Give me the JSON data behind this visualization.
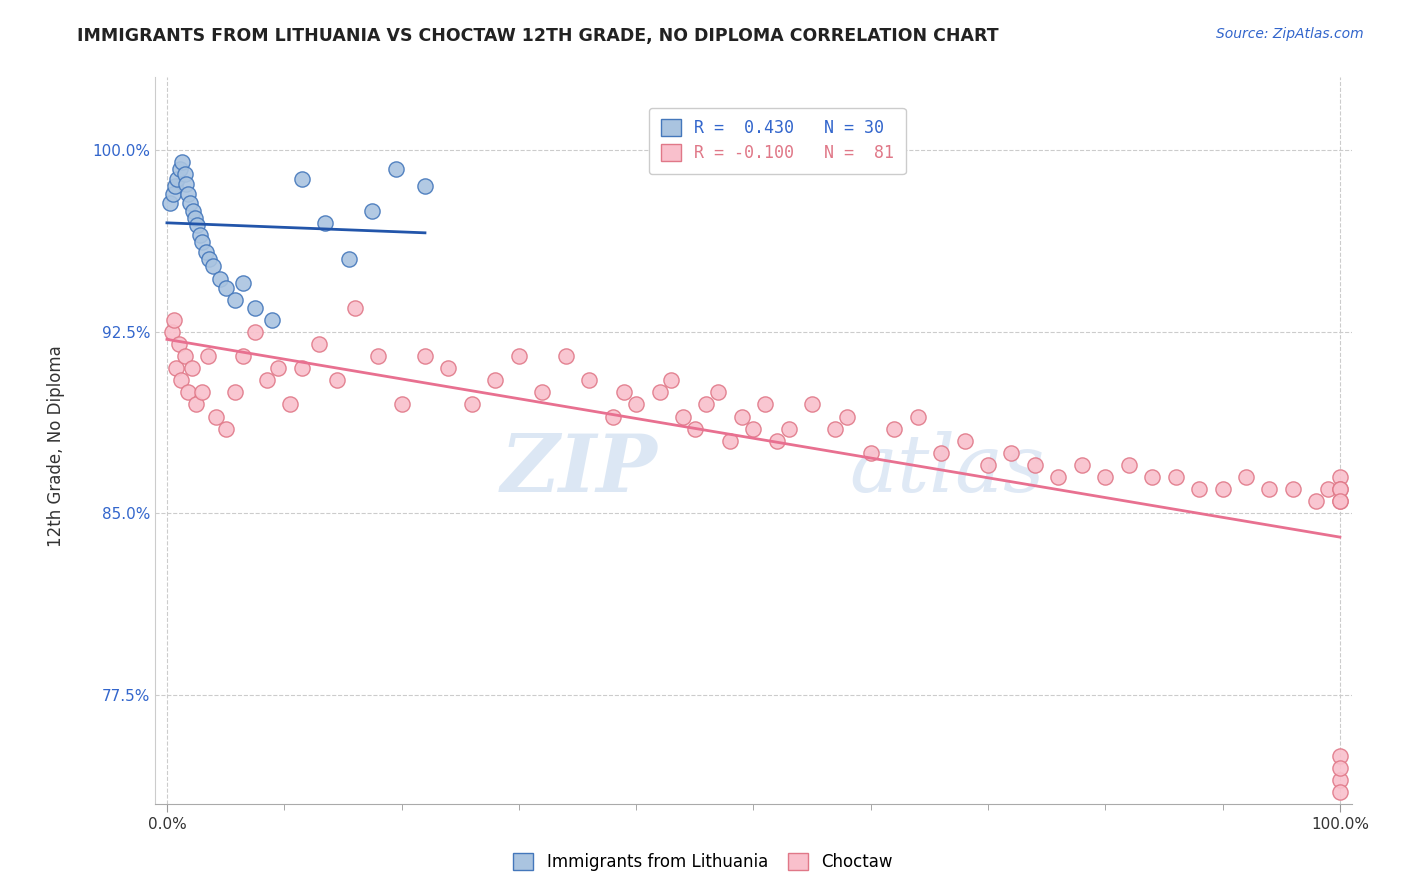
{
  "title": "IMMIGRANTS FROM LITHUANIA VS CHOCTAW 12TH GRADE, NO DIPLOMA CORRELATION CHART",
  "source": "Source: ZipAtlas.com",
  "ylabel": "12th Grade, No Diploma",
  "watermark_zip": "ZIP",
  "watermark_atlas": "atlas",
  "blue_color": "#aac4e0",
  "blue_edge_color": "#4477bb",
  "pink_color": "#f9c0cc",
  "pink_edge_color": "#e07888",
  "blue_line_color": "#2255aa",
  "pink_line_color": "#e87090",
  "xlim": [
    -1,
    101
  ],
  "ylim": [
    73.0,
    103.0
  ],
  "yticks": [
    77.5,
    85.0,
    92.5,
    100.0
  ],
  "ytick_labels": [
    "77.5%",
    "85.0%",
    "92.5%",
    "100.0%"
  ],
  "xtick_left_label": "0.0%",
  "xtick_right_label": "100.0%",
  "legend_r1_blue": "R = ",
  "legend_r1_val": " 0.430",
  "legend_r1_n": "  N = ",
  "legend_r1_nval": "30",
  "legend_r2_pink": "R = ",
  "legend_r2_val": "-0.100",
  "legend_r2_n": "  N = ",
  "legend_r2_nval": " 81",
  "blue_x": [
    0.3,
    0.5,
    0.7,
    0.9,
    1.1,
    1.3,
    1.5,
    1.6,
    1.8,
    2.0,
    2.2,
    2.4,
    2.6,
    2.8,
    3.0,
    3.3,
    3.6,
    3.9,
    4.5,
    5.0,
    5.8,
    6.5,
    7.5,
    9.0,
    11.5,
    13.5,
    15.5,
    17.5,
    19.5,
    22.0
  ],
  "blue_y": [
    97.8,
    98.2,
    98.5,
    98.8,
    99.2,
    99.5,
    99.0,
    98.6,
    98.2,
    97.8,
    97.5,
    97.2,
    96.9,
    96.5,
    96.2,
    95.8,
    95.5,
    95.2,
    94.7,
    94.3,
    93.8,
    94.5,
    93.5,
    93.0,
    98.8,
    97.0,
    95.5,
    97.5,
    99.2,
    98.5
  ],
  "pink_x": [
    0.4,
    0.6,
    0.8,
    1.0,
    1.2,
    1.5,
    1.8,
    2.1,
    2.5,
    3.0,
    3.5,
    4.2,
    5.0,
    5.8,
    6.5,
    7.5,
    8.5,
    9.5,
    10.5,
    11.5,
    13.0,
    14.5,
    16.0,
    18.0,
    20.0,
    22.0,
    24.0,
    26.0,
    28.0,
    30.0,
    32.0,
    34.0,
    36.0,
    38.0,
    39.0,
    40.0,
    42.0,
    43.0,
    44.0,
    45.0,
    46.0,
    47.0,
    48.0,
    49.0,
    50.0,
    51.0,
    52.0,
    53.0,
    55.0,
    57.0,
    58.0,
    60.0,
    62.0,
    64.0,
    66.0,
    68.0,
    70.0,
    72.0,
    74.0,
    76.0,
    78.0,
    80.0,
    82.0,
    84.0,
    86.0,
    88.0,
    90.0,
    92.0,
    94.0,
    96.0,
    98.0,
    99.0,
    100.0,
    100.0,
    100.0,
    100.0,
    100.0,
    100.0,
    100.0,
    100.0,
    100.0
  ],
  "pink_y": [
    92.5,
    93.0,
    91.0,
    92.0,
    90.5,
    91.5,
    90.0,
    91.0,
    89.5,
    90.0,
    91.5,
    89.0,
    88.5,
    90.0,
    91.5,
    92.5,
    90.5,
    91.0,
    89.5,
    91.0,
    92.0,
    90.5,
    93.5,
    91.5,
    89.5,
    91.5,
    91.0,
    89.5,
    90.5,
    91.5,
    90.0,
    91.5,
    90.5,
    89.0,
    90.0,
    89.5,
    90.0,
    90.5,
    89.0,
    88.5,
    89.5,
    90.0,
    88.0,
    89.0,
    88.5,
    89.5,
    88.0,
    88.5,
    89.5,
    88.5,
    89.0,
    87.5,
    88.5,
    89.0,
    87.5,
    88.0,
    87.0,
    87.5,
    87.0,
    86.5,
    87.0,
    86.5,
    87.0,
    86.5,
    86.5,
    86.0,
    86.0,
    86.5,
    86.0,
    86.0,
    85.5,
    86.0,
    86.5,
    86.0,
    85.5,
    86.0,
    85.5,
    75.0,
    74.0,
    73.5,
    74.5
  ]
}
